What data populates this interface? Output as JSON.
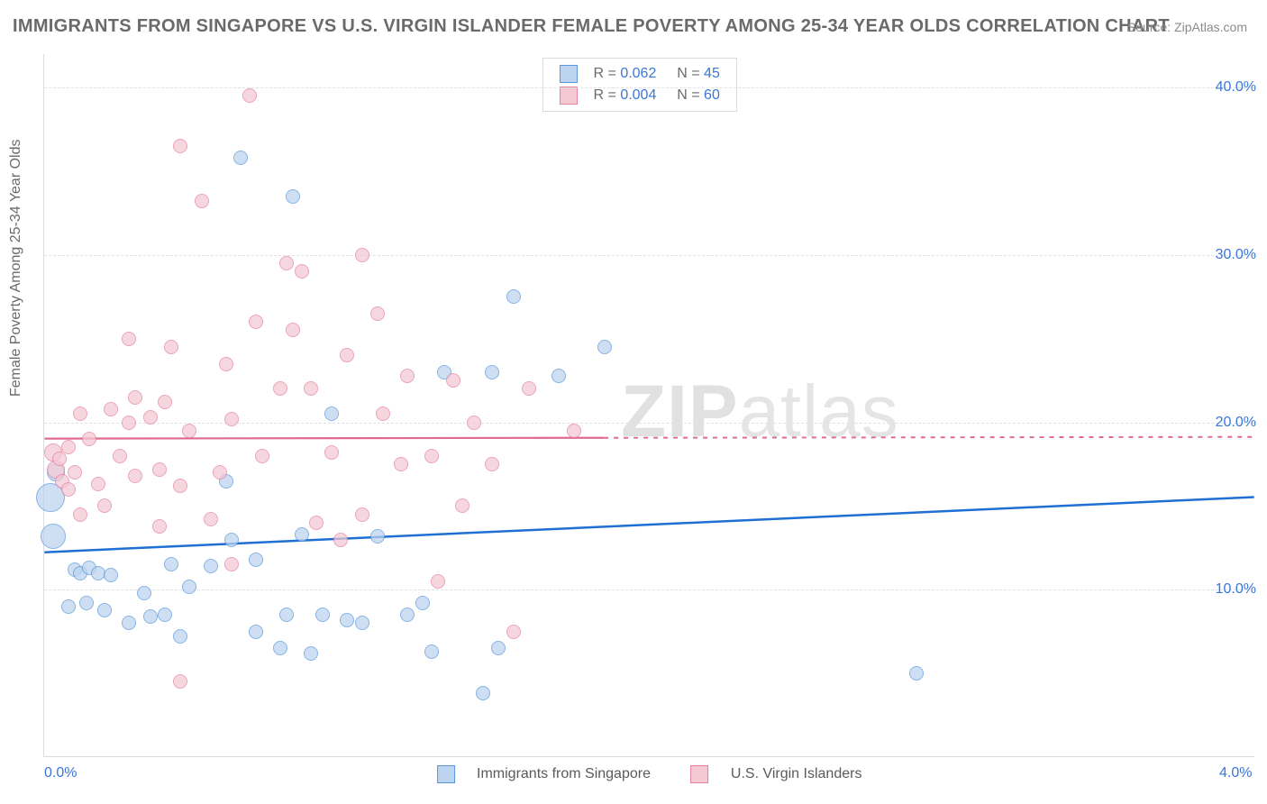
{
  "title": "IMMIGRANTS FROM SINGAPORE VS U.S. VIRGIN ISLANDER FEMALE POVERTY AMONG 25-34 YEAR OLDS CORRELATION CHART",
  "source": "Source: ZipAtlas.com",
  "ylabel": "Female Poverty Among 25-34 Year Olds",
  "watermark": {
    "bold": "ZIP",
    "rest": "atlas"
  },
  "chart": {
    "type": "scatter",
    "xlim": [
      0.0,
      4.0
    ],
    "ylim": [
      0.0,
      42.0
    ],
    "xticks": [
      {
        "v": 0.0,
        "label": "0.0%"
      },
      {
        "v": 4.0,
        "label": "4.0%"
      }
    ],
    "yticks": [
      {
        "v": 10.0,
        "label": "10.0%"
      },
      {
        "v": 20.0,
        "label": "20.0%"
      },
      {
        "v": 30.0,
        "label": "30.0%"
      },
      {
        "v": 40.0,
        "label": "40.0%"
      }
    ],
    "grid_color": "#dfe3e8",
    "background": "#ffffff",
    "legend_top": [
      {
        "swatch_fill": "#bcd4ef",
        "swatch_border": "#5a97da",
        "r": "0.062",
        "n": "45"
      },
      {
        "swatch_fill": "#f5c9d4",
        "swatch_border": "#e381a0",
        "r": "0.004",
        "n": "60"
      }
    ],
    "legend_bottom": [
      {
        "swatch_fill": "#bcd4ef",
        "swatch_border": "#5a97da",
        "label": "Immigrants from Singapore"
      },
      {
        "swatch_fill": "#f5c9d4",
        "swatch_border": "#e381a0",
        "label": "U.S. Virgin Islanders"
      }
    ],
    "series": [
      {
        "name": "Immigrants from Singapore",
        "fill": "#bcd4ef",
        "stroke": "#5a97da",
        "opacity": 0.72,
        "radius_base": 8,
        "trend": {
          "color": "#1f6fd4",
          "width": 2.5,
          "y_at_x0": 12.2,
          "y_at_xmax": 15.5,
          "solid_until_x": 4.0,
          "dash_after": false
        },
        "points": [
          {
            "x": 0.02,
            "y": 15.5,
            "r": 16
          },
          {
            "x": 0.03,
            "y": 13.2,
            "r": 14
          },
          {
            "x": 0.04,
            "y": 17.0,
            "r": 10
          },
          {
            "x": 0.1,
            "y": 11.2,
            "r": 8
          },
          {
            "x": 0.12,
            "y": 11.0,
            "r": 8
          },
          {
            "x": 0.15,
            "y": 11.3,
            "r": 8
          },
          {
            "x": 0.18,
            "y": 11.0,
            "r": 8
          },
          {
            "x": 0.22,
            "y": 10.9,
            "r": 8
          },
          {
            "x": 0.08,
            "y": 9.0,
            "r": 8
          },
          {
            "x": 0.14,
            "y": 9.2,
            "r": 8
          },
          {
            "x": 0.2,
            "y": 8.8,
            "r": 8
          },
          {
            "x": 0.28,
            "y": 8.0,
            "r": 8
          },
          {
            "x": 0.33,
            "y": 9.8,
            "r": 8
          },
          {
            "x": 0.4,
            "y": 8.5,
            "r": 8
          },
          {
            "x": 0.42,
            "y": 11.5,
            "r": 8
          },
          {
            "x": 0.48,
            "y": 10.2,
            "r": 8
          },
          {
            "x": 0.55,
            "y": 11.4,
            "r": 8
          },
          {
            "x": 0.6,
            "y": 16.5,
            "r": 8
          },
          {
            "x": 0.62,
            "y": 13.0,
            "r": 8
          },
          {
            "x": 0.7,
            "y": 11.8,
            "r": 8
          },
          {
            "x": 0.7,
            "y": 7.5,
            "r": 8
          },
          {
            "x": 0.78,
            "y": 6.5,
            "r": 8
          },
          {
            "x": 0.8,
            "y": 8.5,
            "r": 8
          },
          {
            "x": 0.85,
            "y": 13.3,
            "r": 8
          },
          {
            "x": 0.88,
            "y": 6.2,
            "r": 8
          },
          {
            "x": 0.92,
            "y": 8.5,
            "r": 8
          },
          {
            "x": 0.95,
            "y": 20.5,
            "r": 8
          },
          {
            "x": 1.0,
            "y": 8.2,
            "r": 8
          },
          {
            "x": 1.05,
            "y": 8.0,
            "r": 8
          },
          {
            "x": 1.1,
            "y": 13.2,
            "r": 8
          },
          {
            "x": 1.2,
            "y": 8.5,
            "r": 8
          },
          {
            "x": 1.25,
            "y": 9.2,
            "r": 8
          },
          {
            "x": 1.28,
            "y": 6.3,
            "r": 8
          },
          {
            "x": 1.32,
            "y": 23.0,
            "r": 8
          },
          {
            "x": 1.45,
            "y": 3.8,
            "r": 8
          },
          {
            "x": 1.48,
            "y": 23.0,
            "r": 8
          },
          {
            "x": 1.5,
            "y": 6.5,
            "r": 8
          },
          {
            "x": 1.55,
            "y": 27.5,
            "r": 8
          },
          {
            "x": 1.7,
            "y": 22.8,
            "r": 8
          },
          {
            "x": 1.85,
            "y": 24.5,
            "r": 8
          },
          {
            "x": 0.65,
            "y": 35.8,
            "r": 8
          },
          {
            "x": 0.82,
            "y": 33.5,
            "r": 8
          },
          {
            "x": 2.88,
            "y": 5.0,
            "r": 8
          },
          {
            "x": 0.35,
            "y": 8.4,
            "r": 8
          },
          {
            "x": 0.45,
            "y": 7.2,
            "r": 8
          }
        ]
      },
      {
        "name": "U.S. Virgin Islanders",
        "fill": "#f5c9d4",
        "stroke": "#e381a0",
        "opacity": 0.72,
        "radius_base": 8,
        "trend": {
          "color": "#e16a91",
          "width": 2.2,
          "y_at_x0": 19.0,
          "y_at_xmax": 19.1,
          "solid_until_x": 1.85,
          "dash_after": true
        },
        "points": [
          {
            "x": 0.03,
            "y": 18.2,
            "r": 10
          },
          {
            "x": 0.04,
            "y": 17.2,
            "r": 10
          },
          {
            "x": 0.05,
            "y": 17.8,
            "r": 8
          },
          {
            "x": 0.06,
            "y": 16.5,
            "r": 8
          },
          {
            "x": 0.08,
            "y": 18.5,
            "r": 8
          },
          {
            "x": 0.08,
            "y": 16.0,
            "r": 8
          },
          {
            "x": 0.12,
            "y": 20.5,
            "r": 8
          },
          {
            "x": 0.12,
            "y": 14.5,
            "r": 8
          },
          {
            "x": 0.15,
            "y": 19.0,
            "r": 8
          },
          {
            "x": 0.18,
            "y": 16.3,
            "r": 8
          },
          {
            "x": 0.22,
            "y": 20.8,
            "r": 8
          },
          {
            "x": 0.25,
            "y": 18.0,
            "r": 8
          },
          {
            "x": 0.28,
            "y": 25.0,
            "r": 8
          },
          {
            "x": 0.28,
            "y": 20.0,
            "r": 8
          },
          {
            "x": 0.3,
            "y": 16.8,
            "r": 8
          },
          {
            "x": 0.3,
            "y": 21.5,
            "r": 8
          },
          {
            "x": 0.35,
            "y": 20.3,
            "r": 8
          },
          {
            "x": 0.38,
            "y": 17.2,
            "r": 8
          },
          {
            "x": 0.38,
            "y": 13.8,
            "r": 8
          },
          {
            "x": 0.4,
            "y": 21.2,
            "r": 8
          },
          {
            "x": 0.42,
            "y": 24.5,
            "r": 8
          },
          {
            "x": 0.45,
            "y": 16.2,
            "r": 8
          },
          {
            "x": 0.48,
            "y": 19.5,
            "r": 8
          },
          {
            "x": 0.52,
            "y": 33.2,
            "r": 8
          },
          {
            "x": 0.55,
            "y": 14.2,
            "r": 8
          },
          {
            "x": 0.58,
            "y": 17.0,
            "r": 8
          },
          {
            "x": 0.6,
            "y": 23.5,
            "r": 8
          },
          {
            "x": 0.62,
            "y": 11.5,
            "r": 8
          },
          {
            "x": 0.62,
            "y": 20.2,
            "r": 8
          },
          {
            "x": 0.68,
            "y": 39.5,
            "r": 8
          },
          {
            "x": 0.7,
            "y": 26.0,
            "r": 8
          },
          {
            "x": 0.72,
            "y": 18.0,
            "r": 8
          },
          {
            "x": 0.78,
            "y": 22.0,
            "r": 8
          },
          {
            "x": 0.8,
            "y": 29.5,
            "r": 8
          },
          {
            "x": 0.82,
            "y": 25.5,
            "r": 8
          },
          {
            "x": 0.85,
            "y": 29.0,
            "r": 8
          },
          {
            "x": 0.88,
            "y": 22.0,
            "r": 8
          },
          {
            "x": 0.9,
            "y": 14.0,
            "r": 8
          },
          {
            "x": 0.95,
            "y": 18.2,
            "r": 8
          },
          {
            "x": 0.98,
            "y": 13.0,
            "r": 8
          },
          {
            "x": 1.0,
            "y": 24.0,
            "r": 8
          },
          {
            "x": 1.05,
            "y": 30.0,
            "r": 8
          },
          {
            "x": 1.05,
            "y": 14.5,
            "r": 8
          },
          {
            "x": 1.1,
            "y": 26.5,
            "r": 8
          },
          {
            "x": 1.12,
            "y": 20.5,
            "r": 8
          },
          {
            "x": 1.18,
            "y": 17.5,
            "r": 8
          },
          {
            "x": 1.2,
            "y": 22.8,
            "r": 8
          },
          {
            "x": 1.28,
            "y": 18.0,
            "r": 8
          },
          {
            "x": 1.3,
            "y": 10.5,
            "r": 8
          },
          {
            "x": 1.35,
            "y": 22.5,
            "r": 8
          },
          {
            "x": 1.38,
            "y": 15.0,
            "r": 8
          },
          {
            "x": 1.42,
            "y": 20.0,
            "r": 8
          },
          {
            "x": 1.48,
            "y": 17.5,
            "r": 8
          },
          {
            "x": 1.55,
            "y": 7.5,
            "r": 8
          },
          {
            "x": 1.6,
            "y": 22.0,
            "r": 8
          },
          {
            "x": 1.75,
            "y": 19.5,
            "r": 8
          },
          {
            "x": 0.45,
            "y": 36.5,
            "r": 8
          },
          {
            "x": 0.45,
            "y": 4.5,
            "r": 8
          },
          {
            "x": 0.1,
            "y": 17.0,
            "r": 8
          },
          {
            "x": 0.2,
            "y": 15.0,
            "r": 8
          }
        ]
      }
    ]
  }
}
